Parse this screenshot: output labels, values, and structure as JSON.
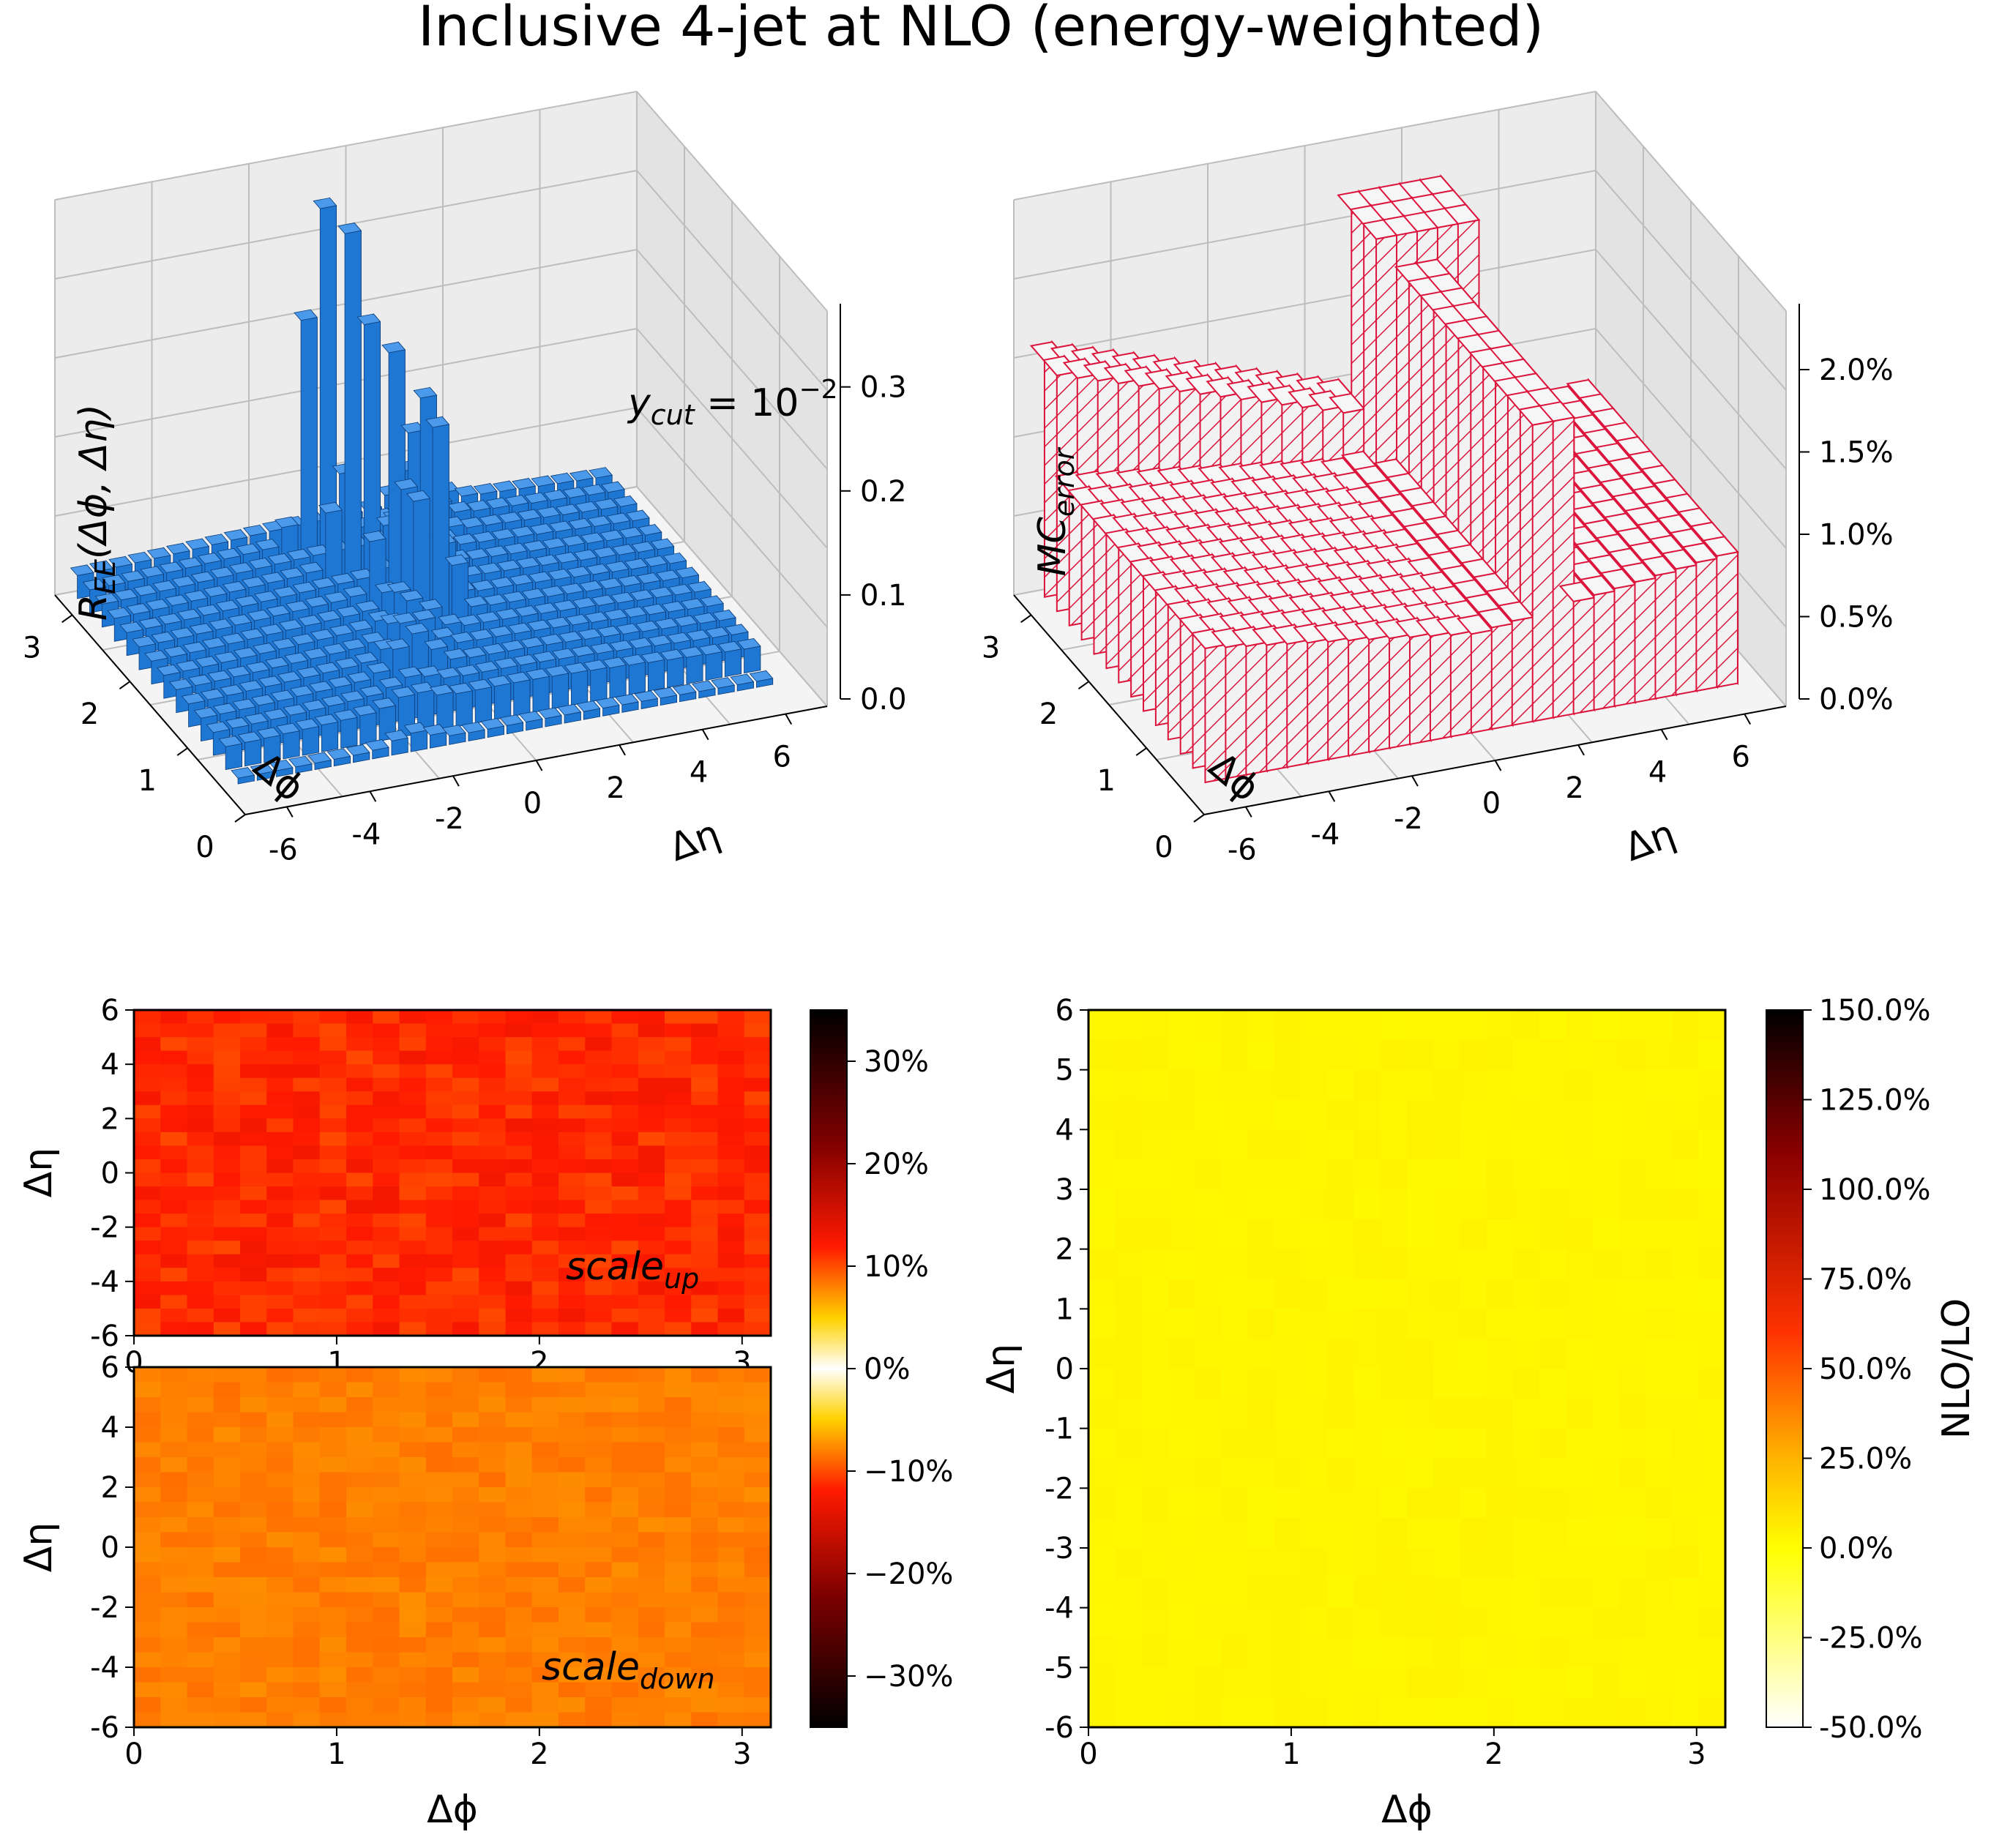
{
  "figure": {
    "title": "Inclusive 4-jet at NLO (energy-weighted)"
  },
  "chart_data": [
    {
      "type": "bar3d",
      "panel": "top-left",
      "zlabel": "R_EE(Δφ, Δη)",
      "xlabel": "Δη",
      "ylabel": "Δφ",
      "annotation": "y_cut = 10^-2",
      "x_ticks": [
        "-6",
        "-4",
        "-2",
        "0",
        "2",
        "4",
        "6"
      ],
      "y_ticks": [
        "0",
        "1",
        "2",
        "3"
      ],
      "z_ticks": [
        "0.0",
        "0.1",
        "0.2",
        "0.3"
      ],
      "zlim": [
        0,
        0.38
      ],
      "bar_color": "#1f77d4",
      "peak_rows": [
        {
          "dphi": 2.95,
          "eta_peak": -1.2,
          "peak": 0.35
        },
        {
          "dphi": 2.6,
          "eta_peak": -0.9,
          "peak": 0.36
        },
        {
          "dphi": 2.2,
          "eta_peak": -0.5,
          "peak": 0.22
        },
        {
          "dphi": 1.8,
          "eta_peak": -0.2,
          "peak": 0.17
        }
      ]
    },
    {
      "type": "bar3d",
      "panel": "top-right",
      "zlabel": "MC_error",
      "xlabel": "Δη",
      "ylabel": "Δφ",
      "x_ticks": [
        "-6",
        "-4",
        "-2",
        "0",
        "2",
        "4",
        "6"
      ],
      "y_ticks": [
        "0",
        "1",
        "2",
        "3"
      ],
      "z_ticks": [
        "0.0%",
        "0.5%",
        "1.0%",
        "1.5%",
        "2.0%"
      ],
      "zlim": [
        0,
        0.024
      ],
      "edge_color": "#dc143c",
      "face_color": "#eeeeee"
    },
    {
      "type": "heatmap",
      "panel": "bottom-left-top",
      "annotation": "scale_up",
      "xlabel": "",
      "ylabel": "Δη",
      "x_range": [
        0,
        3.14159
      ],
      "y_range": [
        -6,
        6
      ],
      "x_ticks": [
        "0",
        "1",
        "2",
        "3"
      ],
      "y_ticks": [
        "-6",
        "-4",
        "-2",
        "0",
        "2",
        "4",
        "6"
      ],
      "typical_value_percent": -15
    },
    {
      "type": "heatmap",
      "panel": "bottom-left-bottom",
      "annotation": "scale_down",
      "xlabel": "Δφ",
      "ylabel": "Δη",
      "x_range": [
        0,
        3.14159
      ],
      "y_range": [
        -6,
        6
      ],
      "x_ticks": [
        "0",
        "1",
        "2",
        "3"
      ],
      "y_ticks": [
        "-6",
        "-4",
        "-2",
        "0",
        "2",
        "4",
        "6"
      ],
      "typical_value_percent": -11
    },
    {
      "type": "colorbar",
      "panel": "scale-colorbar",
      "ticks": [
        "30%",
        "20%",
        "10%",
        "0%",
        "−10%",
        "−20%",
        "−30%"
      ],
      "range": [
        -35,
        35
      ],
      "colormap": "hot, symmetric (white at 0)"
    },
    {
      "type": "heatmap",
      "panel": "bottom-right",
      "xlabel": "Δφ",
      "ylabel": "Δη",
      "x_range": [
        0,
        3.14159
      ],
      "y_range": [
        -6,
        6
      ],
      "x_ticks": [
        "0",
        "1",
        "2",
        "3"
      ],
      "y_ticks": [
        "-6",
        "-5",
        "-4",
        "-3",
        "-2",
        "-1",
        "0",
        "1",
        "2",
        "3",
        "4",
        "5",
        "6"
      ],
      "typical_value_percent": 3
    },
    {
      "type": "colorbar",
      "panel": "nlo-colorbar",
      "label": "NLO/LO",
      "ticks": [
        "150.0%",
        "125.0%",
        "100.0%",
        "75.0%",
        "50.0%",
        "25.0%",
        "0.0%",
        "-25.0%",
        "-50.0%"
      ],
      "range": [
        -50,
        150
      ],
      "colormap": "hot_r"
    }
  ]
}
